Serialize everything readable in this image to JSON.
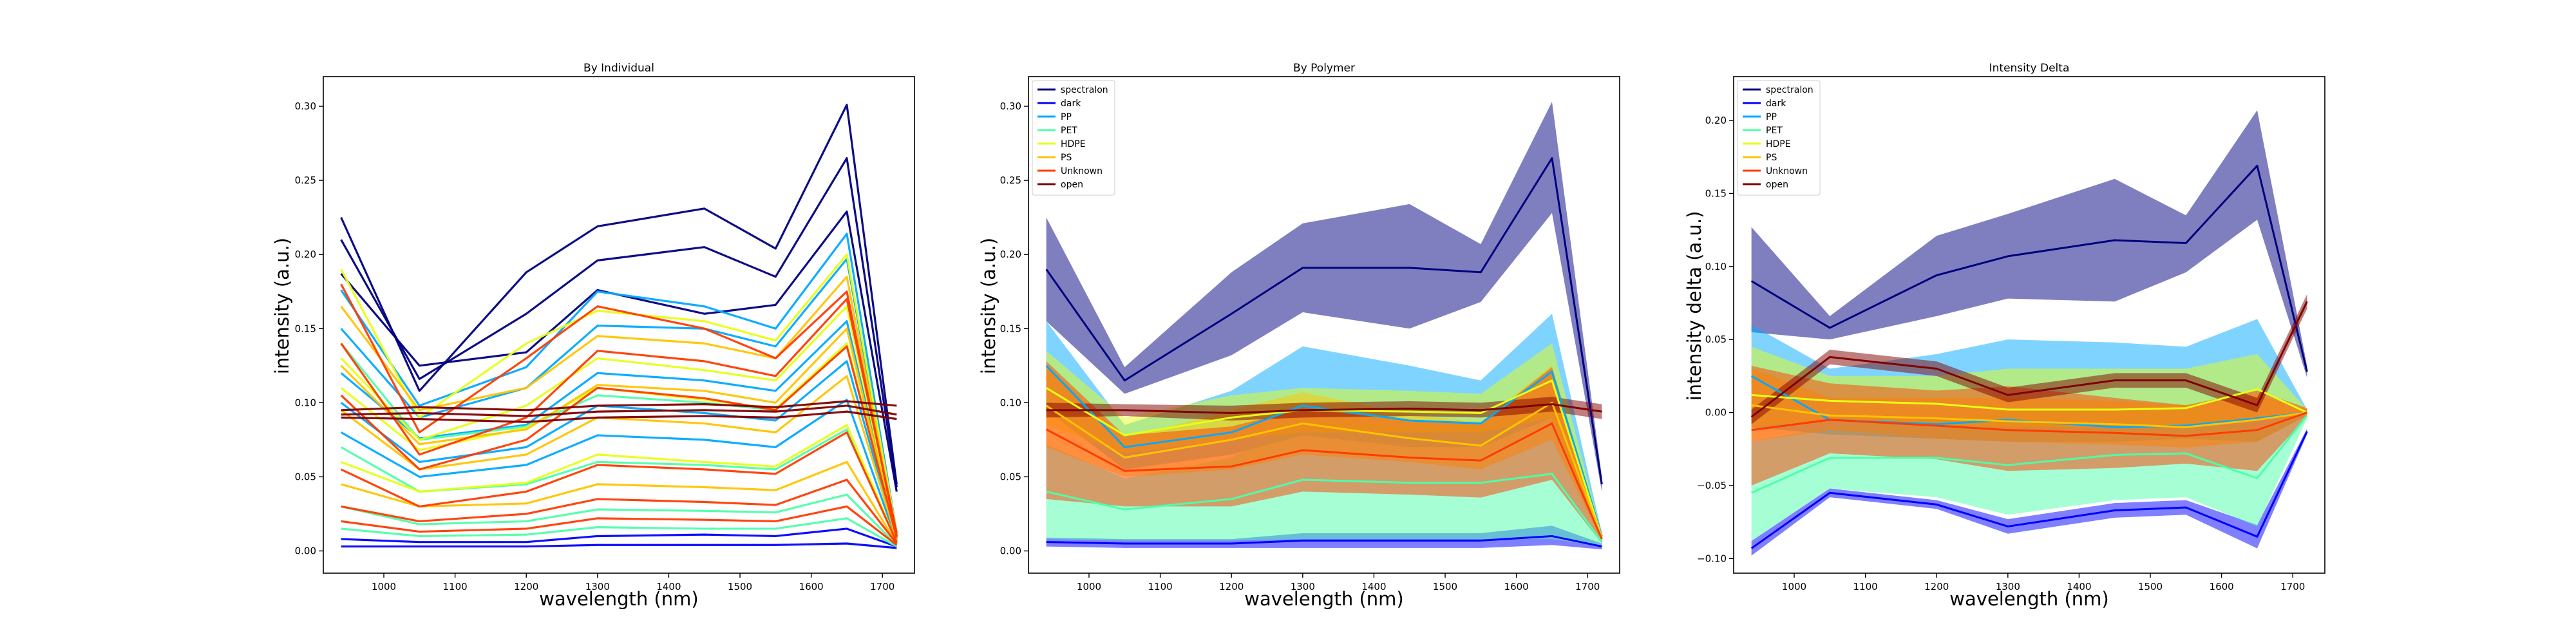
{
  "figure": {
    "xlabel": "wavelength (nm)",
    "x_ticks": [
      1000,
      1100,
      1200,
      1300,
      1400,
      1500,
      1600,
      1700
    ],
    "wavelengths": [
      940,
      1050,
      1200,
      1300,
      1450,
      1550,
      1650,
      1720
    ],
    "legend_entries": [
      {
        "name": "spectralon",
        "color": "#00007f"
      },
      {
        "name": "dark",
        "color": "#0000ff"
      },
      {
        "name": "PP",
        "color": "#00a9ff"
      },
      {
        "name": "PET",
        "color": "#4dffaa"
      },
      {
        "name": "HDPE",
        "color": "#e6ff14"
      },
      {
        "name": "PS",
        "color": "#ffc400"
      },
      {
        "name": "Unknown",
        "color": "#ff3b00"
      },
      {
        "name": "open",
        "color": "#7f0000"
      }
    ]
  },
  "chart_data": [
    {
      "type": "line",
      "title": "By Individual",
      "xlabel": "wavelength (nm)",
      "ylabel": "intensity (a.u.)",
      "xlim": [
        915,
        1745
      ],
      "ylim": [
        -0.015,
        0.32
      ],
      "y_ticks": [
        "0.00",
        "0.05",
        "0.10",
        "0.15",
        "0.20",
        "0.25",
        "0.30"
      ],
      "x": [
        940,
        1050,
        1200,
        1300,
        1450,
        1550,
        1650,
        1720
      ],
      "series": [
        {
          "group": "spectralon",
          "values": [
            0.225,
            0.108,
            0.188,
            0.219,
            0.231,
            0.204,
            0.301,
            0.045
          ]
        },
        {
          "group": "spectralon",
          "values": [
            0.187,
            0.125,
            0.134,
            0.176,
            0.16,
            0.166,
            0.229,
            0.04
          ]
        },
        {
          "group": "spectralon",
          "values": [
            0.21,
            0.116,
            0.16,
            0.196,
            0.205,
            0.185,
            0.265,
            0.043
          ]
        },
        {
          "group": "dark",
          "values": [
            0.003,
            0.003,
            0.003,
            0.004,
            0.004,
            0.004,
            0.005,
            0.002
          ]
        },
        {
          "group": "dark",
          "values": [
            0.008,
            0.006,
            0.006,
            0.01,
            0.011,
            0.01,
            0.015,
            0.003
          ]
        },
        {
          "group": "PP",
          "values": [
            0.176,
            0.098,
            0.124,
            0.175,
            0.165,
            0.15,
            0.214,
            0.012
          ]
        },
        {
          "group": "PP",
          "values": [
            0.15,
            0.09,
            0.11,
            0.152,
            0.15,
            0.138,
            0.197,
            0.01
          ]
        },
        {
          "group": "PP",
          "values": [
            0.12,
            0.076,
            0.085,
            0.12,
            0.115,
            0.108,
            0.155,
            0.009
          ]
        },
        {
          "group": "PP",
          "values": [
            0.1,
            0.06,
            0.07,
            0.098,
            0.093,
            0.088,
            0.128,
            0.008
          ]
        },
        {
          "group": "PP",
          "values": [
            0.08,
            0.05,
            0.058,
            0.078,
            0.075,
            0.07,
            0.102,
            0.007
          ]
        },
        {
          "group": "PET",
          "values": [
            0.14,
            0.075,
            0.084,
            0.105,
            0.1,
            0.095,
            0.14,
            0.01
          ]
        },
        {
          "group": "PET",
          "values": [
            0.07,
            0.04,
            0.045,
            0.06,
            0.058,
            0.055,
            0.082,
            0.006
          ]
        },
        {
          "group": "PET",
          "values": [
            0.03,
            0.018,
            0.02,
            0.028,
            0.027,
            0.026,
            0.038,
            0.004
          ]
        },
        {
          "group": "PET",
          "values": [
            0.015,
            0.01,
            0.011,
            0.016,
            0.015,
            0.015,
            0.022,
            0.003
          ]
        },
        {
          "group": "HDPE",
          "values": [
            0.19,
            0.09,
            0.14,
            0.162,
            0.155,
            0.142,
            0.2,
            0.012
          ]
        },
        {
          "group": "HDPE",
          "values": [
            0.13,
            0.075,
            0.098,
            0.13,
            0.122,
            0.115,
            0.165,
            0.01
          ]
        },
        {
          "group": "HDPE",
          "values": [
            0.11,
            0.068,
            0.083,
            0.11,
            0.102,
            0.096,
            0.14,
            0.009
          ]
        },
        {
          "group": "HDPE",
          "values": [
            0.06,
            0.04,
            0.046,
            0.065,
            0.06,
            0.057,
            0.085,
            0.006
          ]
        },
        {
          "group": "PS",
          "values": [
            0.165,
            0.095,
            0.11,
            0.145,
            0.14,
            0.13,
            0.185,
            0.011
          ]
        },
        {
          "group": "PS",
          "values": [
            0.125,
            0.072,
            0.082,
            0.112,
            0.108,
            0.1,
            0.15,
            0.009
          ]
        },
        {
          "group": "PS",
          "values": [
            0.095,
            0.055,
            0.065,
            0.09,
            0.086,
            0.08,
            0.118,
            0.008
          ]
        },
        {
          "group": "PS",
          "values": [
            0.045,
            0.03,
            0.032,
            0.045,
            0.043,
            0.041,
            0.06,
            0.005
          ]
        },
        {
          "group": "Unknown",
          "values": [
            0.18,
            0.08,
            0.13,
            0.165,
            0.15,
            0.13,
            0.175,
            0.01
          ]
        },
        {
          "group": "Unknown",
          "values": [
            0.14,
            0.065,
            0.09,
            0.135,
            0.128,
            0.118,
            0.17,
            0.012
          ]
        },
        {
          "group": "Unknown",
          "values": [
            0.105,
            0.055,
            0.075,
            0.11,
            0.103,
            0.095,
            0.138,
            0.009
          ]
        },
        {
          "group": "Unknown",
          "values": [
            0.055,
            0.03,
            0.04,
            0.058,
            0.055,
            0.052,
            0.08,
            0.006
          ]
        },
        {
          "group": "Unknown",
          "values": [
            0.03,
            0.02,
            0.025,
            0.035,
            0.033,
            0.031,
            0.048,
            0.005
          ]
        },
        {
          "group": "Unknown",
          "values": [
            0.02,
            0.013,
            0.015,
            0.022,
            0.021,
            0.02,
            0.03,
            0.004
          ]
        },
        {
          "group": "open",
          "values": [
            0.095,
            0.097,
            0.095,
            0.098,
            0.099,
            0.097,
            0.101,
            0.098
          ]
        },
        {
          "group": "open",
          "values": [
            0.092,
            0.093,
            0.091,
            0.094,
            0.095,
            0.094,
            0.098,
            0.092
          ]
        },
        {
          "group": "open",
          "values": [
            0.09,
            0.089,
            0.087,
            0.09,
            0.091,
            0.09,
            0.094,
            0.089
          ]
        }
      ]
    },
    {
      "type": "area",
      "title": "By Polymer",
      "xlabel": "wavelength (nm)",
      "ylabel": "intensity (a.u.)",
      "xlim": [
        915,
        1745
      ],
      "ylim": [
        -0.015,
        0.32
      ],
      "y_ticks": [
        "0.00",
        "0.05",
        "0.10",
        "0.15",
        "0.20",
        "0.25",
        "0.30"
      ],
      "x": [
        940,
        1050,
        1200,
        1300,
        1450,
        1550,
        1650,
        1720
      ],
      "series": [
        {
          "name": "spectralon",
          "mean": [
            0.19,
            0.115,
            0.16,
            0.191,
            0.191,
            0.188,
            0.265,
            0.045
          ],
          "low": [
            0.155,
            0.106,
            0.132,
            0.161,
            0.15,
            0.168,
            0.228,
            0.04
          ],
          "high": [
            0.225,
            0.124,
            0.188,
            0.221,
            0.234,
            0.207,
            0.303,
            0.05
          ]
        },
        {
          "name": "dark",
          "mean": [
            0.006,
            0.005,
            0.005,
            0.007,
            0.007,
            0.007,
            0.01,
            0.003
          ],
          "low": [
            0.003,
            0.002,
            0.002,
            0.002,
            0.002,
            0.002,
            0.004,
            0.001
          ],
          "high": [
            0.009,
            0.008,
            0.008,
            0.012,
            0.012,
            0.012,
            0.017,
            0.005
          ]
        },
        {
          "name": "PP",
          "mean": [
            0.125,
            0.07,
            0.08,
            0.098,
            0.088,
            0.086,
            0.121,
            0.01
          ],
          "low": [
            0.095,
            0.055,
            0.065,
            0.078,
            0.07,
            0.07,
            0.09,
            0.008
          ],
          "high": [
            0.155,
            0.085,
            0.108,
            0.138,
            0.125,
            0.115,
            0.16,
            0.012
          ]
        },
        {
          "name": "PET",
          "mean": [
            0.04,
            0.028,
            0.035,
            0.048,
            0.046,
            0.046,
            0.052,
            0.006
          ],
          "low": [
            0.008,
            0.007,
            0.007,
            0.008,
            0.008,
            0.008,
            0.008,
            0.003
          ],
          "high": [
            0.072,
            0.049,
            0.063,
            0.088,
            0.084,
            0.084,
            0.096,
            0.009
          ]
        },
        {
          "name": "HDPE",
          "mean": [
            0.11,
            0.078,
            0.09,
            0.095,
            0.094,
            0.093,
            0.115,
            0.009
          ],
          "low": [
            0.085,
            0.066,
            0.075,
            0.08,
            0.08,
            0.08,
            0.09,
            0.007
          ],
          "high": [
            0.135,
            0.09,
            0.105,
            0.11,
            0.108,
            0.106,
            0.14,
            0.011
          ]
        },
        {
          "name": "PS",
          "mean": [
            0.098,
            0.063,
            0.075,
            0.086,
            0.076,
            0.071,
            0.1,
            0.009
          ],
          "low": [
            0.07,
            0.05,
            0.055,
            0.065,
            0.06,
            0.055,
            0.075,
            0.007
          ],
          "high": [
            0.126,
            0.076,
            0.095,
            0.107,
            0.092,
            0.087,
            0.125,
            0.011
          ]
        },
        {
          "name": "Unknown",
          "mean": [
            0.082,
            0.054,
            0.057,
            0.068,
            0.063,
            0.061,
            0.086,
            0.008
          ],
          "low": [
            0.035,
            0.03,
            0.03,
            0.04,
            0.038,
            0.036,
            0.048,
            0.005
          ],
          "high": [
            0.128,
            0.078,
            0.084,
            0.096,
            0.088,
            0.086,
            0.124,
            0.011
          ]
        },
        {
          "name": "open",
          "mean": [
            0.095,
            0.095,
            0.093,
            0.095,
            0.096,
            0.095,
            0.099,
            0.094
          ],
          "low": [
            0.09,
            0.091,
            0.088,
            0.09,
            0.091,
            0.09,
            0.094,
            0.089
          ],
          "high": [
            0.1,
            0.099,
            0.098,
            0.1,
            0.101,
            0.1,
            0.104,
            0.099
          ]
        }
      ],
      "legend": "top-left"
    },
    {
      "type": "area",
      "title": "Intensity Delta",
      "xlabel": "wavelength (nm)",
      "ylabel": "intensity delta (a.u.)",
      "xlim": [
        915,
        1745
      ],
      "ylim": [
        -0.11,
        0.23
      ],
      "y_ticks": [
        "−0.10",
        "−0.05",
        "0.00",
        "0.05",
        "0.10",
        "0.15",
        "0.20"
      ],
      "x": [
        940,
        1050,
        1200,
        1300,
        1450,
        1550,
        1650,
        1720
      ],
      "series": [
        {
          "name": "spectralon",
          "mean": [
            0.09,
            0.058,
            0.094,
            0.107,
            0.118,
            0.116,
            0.169,
            0.028
          ],
          "low": [
            0.055,
            0.05,
            0.066,
            0.078,
            0.076,
            0.096,
            0.132,
            0.024
          ],
          "high": [
            0.127,
            0.066,
            0.121,
            0.136,
            0.16,
            0.135,
            0.207,
            0.032
          ]
        },
        {
          "name": "dark",
          "mean": [
            -0.093,
            -0.055,
            -0.063,
            -0.078,
            -0.067,
            -0.065,
            -0.085,
            -0.013
          ],
          "low": [
            -0.098,
            -0.058,
            -0.066,
            -0.083,
            -0.072,
            -0.07,
            -0.093,
            -0.015
          ],
          "high": [
            -0.088,
            -0.052,
            -0.06,
            -0.073,
            -0.062,
            -0.06,
            -0.077,
            -0.011
          ]
        },
        {
          "name": "PP",
          "mean": [
            0.025,
            -0.005,
            -0.008,
            -0.005,
            -0.01,
            -0.009,
            -0.004,
            0.0
          ],
          "low": [
            -0.01,
            -0.015,
            -0.018,
            -0.02,
            -0.02,
            -0.018,
            -0.02,
            -0.002
          ],
          "high": [
            0.06,
            0.03,
            0.04,
            0.05,
            0.048,
            0.045,
            0.064,
            0.002
          ]
        },
        {
          "name": "PET",
          "mean": [
            -0.055,
            -0.031,
            -0.031,
            -0.036,
            -0.029,
            -0.028,
            -0.045,
            -0.002
          ],
          "low": [
            -0.088,
            -0.052,
            -0.058,
            -0.07,
            -0.06,
            -0.058,
            -0.078,
            -0.004
          ],
          "high": [
            -0.02,
            -0.01,
            -0.005,
            0.0,
            0.002,
            0.005,
            -0.01,
            0.0
          ]
        },
        {
          "name": "HDPE",
          "mean": [
            0.012,
            0.008,
            0.006,
            0.002,
            0.002,
            0.003,
            0.016,
            0.0
          ],
          "low": [
            -0.01,
            -0.005,
            -0.008,
            -0.01,
            -0.01,
            -0.008,
            -0.005,
            -0.002
          ],
          "high": [
            0.045,
            0.025,
            0.025,
            0.03,
            0.03,
            0.03,
            0.04,
            0.002
          ]
        },
        {
          "name": "PS",
          "mean": [
            0.005,
            -0.002,
            -0.004,
            -0.006,
            -0.008,
            -0.01,
            -0.005,
            0.0
          ],
          "low": [
            -0.02,
            -0.012,
            -0.018,
            -0.02,
            -0.022,
            -0.024,
            -0.02,
            -0.002
          ],
          "high": [
            0.03,
            0.01,
            0.01,
            0.01,
            0.008,
            0.005,
            0.012,
            0.002
          ]
        },
        {
          "name": "Unknown",
          "mean": [
            -0.012,
            -0.005,
            -0.009,
            -0.012,
            -0.014,
            -0.016,
            -0.012,
            0.0
          ],
          "low": [
            -0.05,
            -0.028,
            -0.032,
            -0.04,
            -0.038,
            -0.035,
            -0.04,
            -0.003
          ],
          "high": [
            0.032,
            0.02,
            0.015,
            0.018,
            0.01,
            0.005,
            0.015,
            0.003
          ]
        },
        {
          "name": "open",
          "mean": [
            -0.003,
            0.038,
            0.03,
            0.012,
            0.022,
            0.022,
            0.005,
            0.076
          ],
          "low": [
            -0.008,
            0.033,
            0.025,
            0.007,
            0.017,
            0.017,
            0.0,
            0.071
          ],
          "high": [
            0.002,
            0.043,
            0.035,
            0.017,
            0.027,
            0.027,
            0.01,
            0.081
          ]
        }
      ],
      "legend": "top-left"
    }
  ]
}
